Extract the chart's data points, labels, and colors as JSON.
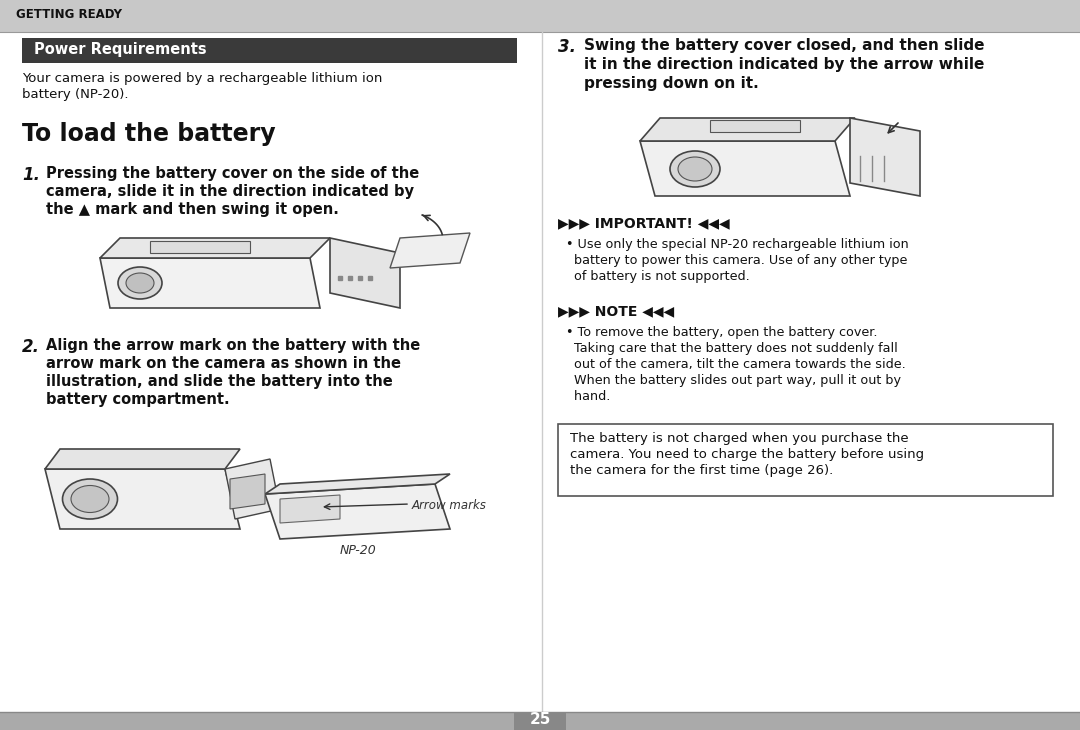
{
  "bg_color": "#ffffff",
  "header_bg": "#c8c8c8",
  "header_text": "GETTING READY",
  "section_title_bg": "#3a3a3a",
  "section_title_text": "Power Requirements",
  "section_title_color": "#ffffff",
  "intro_line1": "Your camera is powered by a rechargeable lithium ion",
  "intro_line2": "battery (NP-20).",
  "main_heading": "To load the battery",
  "step1_num": "1.",
  "step1_line1": "Pressing the battery cover on the side of the",
  "step1_line2": "camera, slide it in the direction indicated by",
  "step1_line3": "the ▲ mark and then swing it open.",
  "step2_num": "2.",
  "step2_line1": "Align the arrow mark on the battery with the",
  "step2_line2": "arrow mark on the camera as shown in the",
  "step2_line3": "illustration, and slide the battery into the",
  "step2_line4": "battery compartment.",
  "arrow_marks_label": "Arrow marks",
  "np20_label": "NP-20",
  "step3_num": "3.",
  "step3_line1": "Swing the battery cover closed, and then slide",
  "step3_line2": "it in the direction indicated by the arrow while",
  "step3_line3": "pressing down on it.",
  "important_header": "▶▶▶ IMPORTANT! ◀◀◀",
  "important_bullet": "• Use only the special NP-20 rechargeable lithium ion",
  "important_line2": "  battery to power this camera. Use of any other type",
  "important_line3": "  of battery is not supported.",
  "note_header": "▶▶▶ NOTE ◀◀◀",
  "note_bullet": "• To remove the battery, open the battery cover.",
  "note_line2": "  Taking care that the battery does not suddenly fall",
  "note_line3": "  out of the camera, tilt the camera towards the side.",
  "note_line4": "  When the battery slides out part way, pull it out by",
  "note_line5": "  hand.",
  "box_line1": "The battery is not charged when you purchase the",
  "box_line2": "camera. You need to charge the battery before using",
  "box_line3": "the camera for the first time (page 26).",
  "page_number": "25",
  "divider_color": "#aaaaaa",
  "footer_color": "#aaaaaa",
  "page_num_bg": "#888888",
  "page_num_color": "#ffffff"
}
